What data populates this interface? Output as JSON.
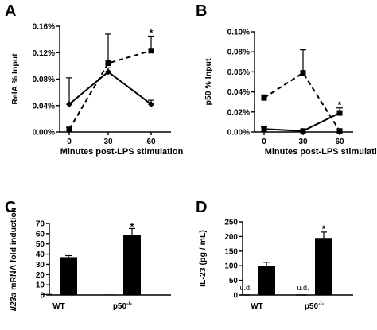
{
  "chart_data": [
    {
      "panel": "A",
      "type": "line",
      "ylabel": "RelA % Input",
      "xlabel": "Minutes post-LPS stimulation",
      "ylim": [
        0,
        0.16
      ],
      "yticks": [
        "0.00%",
        "0.04%",
        "0.08%",
        "0.12%",
        "0.16%"
      ],
      "yticks_values": [
        0,
        0.04,
        0.08,
        0.12,
        0.16
      ],
      "categories": [
        "0",
        "30",
        "60"
      ],
      "series": [
        {
          "style": "solid",
          "marker": "diamond",
          "values": [
            0.042,
            0.091,
            0.042
          ],
          "errors": [
            0.04,
            0.006,
            0.006
          ]
        },
        {
          "style": "dashed",
          "marker": "square",
          "values": [
            0.004,
            0.104,
            0.123
          ],
          "errors": [
            0.003,
            0.044,
            0.022
          ]
        }
      ],
      "annotations": [
        {
          "text": "*",
          "category": "60",
          "y": 0.15
        }
      ]
    },
    {
      "panel": "B",
      "type": "line",
      "ylabel": "p50 % Input",
      "xlabel": "Minutes post-LPS stimulation",
      "ylim": [
        0,
        0.1
      ],
      "yticks": [
        "0.00%",
        "0.02%",
        "0.04%",
        "0.06%",
        "0.08%",
        "0.10%"
      ],
      "yticks_values": [
        0,
        0.02,
        0.04,
        0.06,
        0.08,
        0.1
      ],
      "categories": [
        "0",
        "30",
        "60"
      ],
      "series": [
        {
          "style": "dashed",
          "marker": "square",
          "values": [
            0.034,
            0.059,
            0.001
          ],
          "errors": [
            0.003,
            0.023,
            0.0
          ]
        },
        {
          "style": "solid",
          "marker": "square",
          "values": [
            0.003,
            0.001,
            0.019
          ],
          "errors": [
            0.002,
            0.001,
            0.005
          ]
        }
      ],
      "annotations": [
        {
          "text": "*",
          "category": "60",
          "y": 0.027
        }
      ]
    },
    {
      "panel": "C",
      "type": "bar",
      "ylabel_italic": "Il23a",
      "ylabel_rest": " mRNA fold induction",
      "ylim": [
        0,
        70
      ],
      "yticks": [
        "0",
        "10",
        "20",
        "30",
        "40",
        "50",
        "60",
        "70"
      ],
      "yticks_values": [
        0,
        10,
        20,
        30,
        40,
        50,
        60,
        70
      ],
      "categories": [
        "WT",
        "p50-/-"
      ],
      "categories_display": [
        {
          "main": "WT",
          "sup": ""
        },
        {
          "main": "p50",
          "sup": "-/-"
        }
      ],
      "series": [
        {
          "values": [
            1,
            0.5
          ],
          "errors": [
            0,
            0
          ]
        },
        {
          "values": [
            37,
            59
          ],
          "errors": [
            1.5,
            6
          ]
        }
      ],
      "annotations": [
        {
          "text": "*",
          "category": "p50-/-",
          "y": 67
        }
      ]
    },
    {
      "panel": "D",
      "type": "bar",
      "ylabel": "IL-23 (pg / mL)",
      "ylim": [
        0,
        250
      ],
      "yticks": [
        "0",
        "50",
        "100",
        "150",
        "200",
        "250"
      ],
      "yticks_values": [
        0,
        50,
        100,
        150,
        200,
        250
      ],
      "categories": [
        "WT",
        "p50-/-"
      ],
      "categories_display": [
        {
          "main": "WT",
          "sup": ""
        },
        {
          "main": "p50",
          "sup": "-/-"
        }
      ],
      "series": [
        {
          "values": [
            0,
            0
          ],
          "errors": [
            0,
            0
          ],
          "labels": [
            "u.d.",
            "u.d."
          ]
        },
        {
          "values": [
            100,
            195
          ],
          "errors": [
            12,
            20
          ]
        }
      ],
      "annotations": [
        {
          "text": "*",
          "category": "p50-/-",
          "y": 226
        }
      ]
    }
  ]
}
